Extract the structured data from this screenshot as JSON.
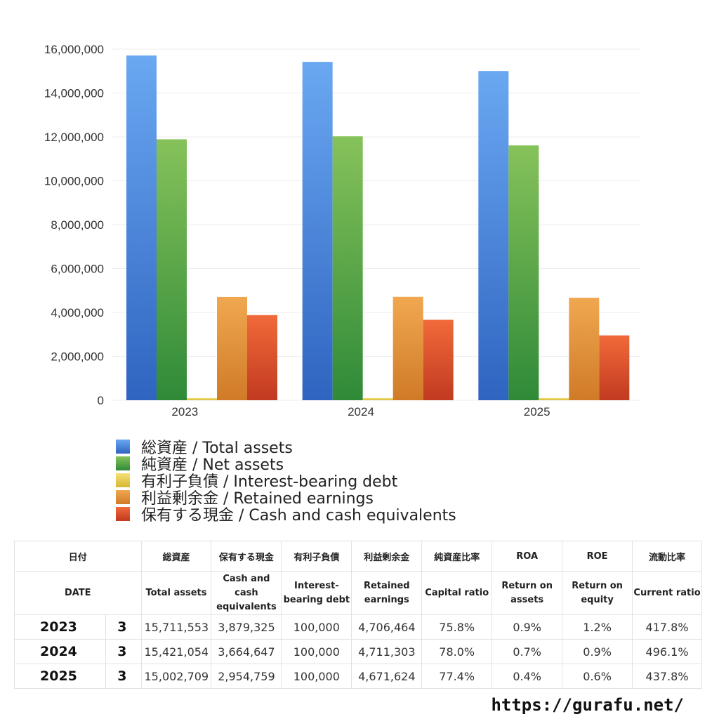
{
  "chart_data": {
    "type": "bar",
    "categories": [
      "2023",
      "2024",
      "2025"
    ],
    "ylim": [
      0,
      16000000
    ],
    "yticks": [
      0,
      2000000,
      4000000,
      6000000,
      8000000,
      10000000,
      12000000,
      14000000,
      16000000
    ],
    "ytick_labels": [
      "0",
      "2,000,000",
      "4,000,000",
      "6,000,000",
      "8,000,000",
      "10,000,000",
      "12,000,000",
      "14,000,000",
      "16,000,000"
    ],
    "grid": true,
    "legend_position": "bottom",
    "series": [
      {
        "name": "総資産 / Total assets",
        "values": [
          15711553,
          15421054,
          15002709
        ],
        "color_top": "#6aa8f2",
        "color_bottom": "#2f64c0"
      },
      {
        "name": "純資産 / Net assets",
        "values": [
          11891000,
          12027000,
          11612000
        ],
        "color_top": "#86c25a",
        "color_bottom": "#2f8a38"
      },
      {
        "name": "有利子負債 / Interest-bearing debt",
        "values": [
          100000,
          100000,
          100000
        ],
        "color_top": "#f4e07a",
        "color_bottom": "#d8b830"
      },
      {
        "name": "利益剰余金 / Retained earnings",
        "values": [
          4706464,
          4711303,
          4671624
        ],
        "color_top": "#f0a850",
        "color_bottom": "#d07a28"
      },
      {
        "name": "保有する現金 /  Cash and cash equivalents",
        "values": [
          3879325,
          3664647,
          2954759
        ],
        "color_top": "#f06a3a",
        "color_bottom": "#c23a20"
      }
    ]
  },
  "table": {
    "headers_jp": [
      "日付",
      "総資産",
      "保有する現金",
      "有利子負債",
      "利益剰余金",
      "純資産比率",
      "ROA",
      "ROE",
      "流動比率"
    ],
    "headers_en": [
      "DATE",
      "Total assets",
      "Cash and cash equivalents",
      "Interest-bearing debt",
      "Retained earnings",
      "Capital ratio",
      "Return on assets",
      "Return on equity",
      "Current ratio"
    ],
    "rows": [
      {
        "year": "2023",
        "q": "3",
        "total_assets": "15,711,553",
        "cash": "3,879,325",
        "debt": "100,000",
        "retained": "4,706,464",
        "capital_ratio": "75.8%",
        "roa": "0.9%",
        "roe": "1.2%",
        "current_ratio": "417.8%"
      },
      {
        "year": "2024",
        "q": "3",
        "total_assets": "15,421,054",
        "cash": "3,664,647",
        "debt": "100,000",
        "retained": "4,711,303",
        "capital_ratio": "78.0%",
        "roa": "0.7%",
        "roe": "0.9%",
        "current_ratio": "496.1%"
      },
      {
        "year": "2025",
        "q": "3",
        "total_assets": "15,002,709",
        "cash": "2,954,759",
        "debt": "100,000",
        "retained": "4,671,624",
        "capital_ratio": "77.4%",
        "roa": "0.4%",
        "roe": "0.6%",
        "current_ratio": "437.8%"
      }
    ]
  },
  "footer": {
    "url": "https://gurafu.net/"
  }
}
